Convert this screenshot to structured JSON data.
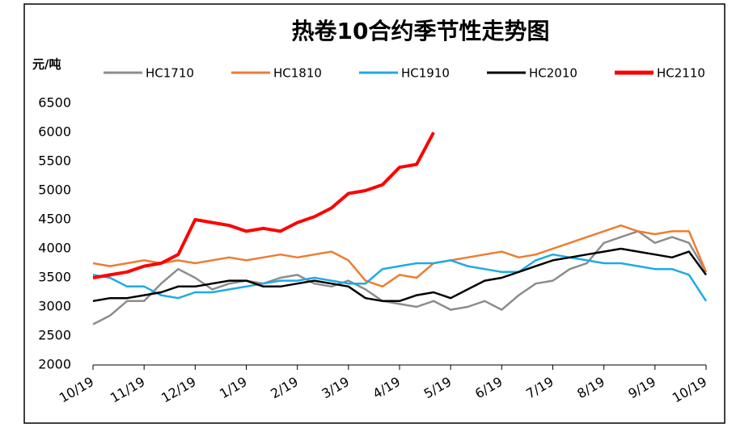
{
  "chart_data": {
    "type": "line",
    "title": "热卷10合约季节性走势图",
    "y_label": "元/吨",
    "categories": [
      "10/19",
      null,
      null,
      "11/19",
      null,
      null,
      "12/19",
      null,
      null,
      "1/19",
      null,
      null,
      "2/19",
      null,
      null,
      "3/19",
      null,
      null,
      "4/19",
      null,
      null,
      "5/19",
      null,
      null,
      "6/19",
      null,
      null,
      "7/19",
      null,
      null,
      "8/19",
      null,
      null,
      "9/19",
      null,
      null,
      "10/19"
    ],
    "ylim": [
      2000,
      6500
    ],
    "yticks": [
      2000,
      2500,
      3000,
      3500,
      4000,
      4500,
      5000,
      5500,
      6000,
      6500
    ],
    "series": [
      {
        "name": "HC1710",
        "color": "#8c8c8c",
        "values": [
          2700,
          2850,
          3100,
          3100,
          3400,
          3650,
          3500,
          3300,
          3400,
          3450,
          3400,
          3500,
          3550,
          3400,
          3350,
          3450,
          3300,
          3100,
          3050,
          3000,
          3100,
          2950,
          3000,
          3100,
          2950,
          3200,
          3400,
          3450,
          3650,
          3750,
          4100,
          4200,
          4300,
          4100,
          4200,
          4100,
          3600
        ]
      },
      {
        "name": "HC1810",
        "color": "#ed7d31",
        "values": [
          3750,
          3700,
          3750,
          3800,
          3750,
          3800,
          3750,
          3800,
          3850,
          3800,
          3850,
          3900,
          3850,
          3900,
          3950,
          3800,
          3450,
          3350,
          3550,
          3500,
          3750,
          3800,
          3850,
          3900,
          3950,
          3850,
          3900,
          4000,
          4100,
          4200,
          4300,
          4400,
          4300,
          4250,
          4300,
          4300,
          3600
        ]
      },
      {
        "name": "HC1910",
        "color": "#1eaae6",
        "values": [
          3550,
          3500,
          3350,
          3350,
          3200,
          3150,
          3250,
          3250,
          3300,
          3350,
          3400,
          3450,
          3450,
          3500,
          3450,
          3400,
          3400,
          3650,
          3700,
          3750,
          3750,
          3800,
          3700,
          3650,
          3600,
          3600,
          3800,
          3900,
          3850,
          3800,
          3750,
          3750,
          3700,
          3650,
          3650,
          3550,
          3100
        ]
      },
      {
        "name": "HC2010",
        "color": "#000000",
        "values": [
          3100,
          3150,
          3150,
          3200,
          3250,
          3350,
          3350,
          3400,
          3450,
          3450,
          3350,
          3350,
          3400,
          3450,
          3400,
          3350,
          3150,
          3100,
          3100,
          3200,
          3250,
          3150,
          3300,
          3450,
          3500,
          3600,
          3700,
          3800,
          3850,
          3900,
          3950,
          4000,
          3950,
          3900,
          3850,
          3950,
          3550
        ]
      },
      {
        "name": "HC2110",
        "color": "#ff0000",
        "values": [
          3500,
          3550,
          3600,
          3700,
          3750,
          3900,
          4500,
          4450,
          4400,
          4300,
          4350,
          4300,
          4450,
          4550,
          4700,
          4950,
          5000,
          5100,
          5400,
          5450,
          6000,
          null,
          null,
          null,
          null,
          null,
          null,
          null,
          null,
          null,
          null,
          null,
          null,
          null,
          null,
          null,
          null
        ]
      }
    ]
  }
}
